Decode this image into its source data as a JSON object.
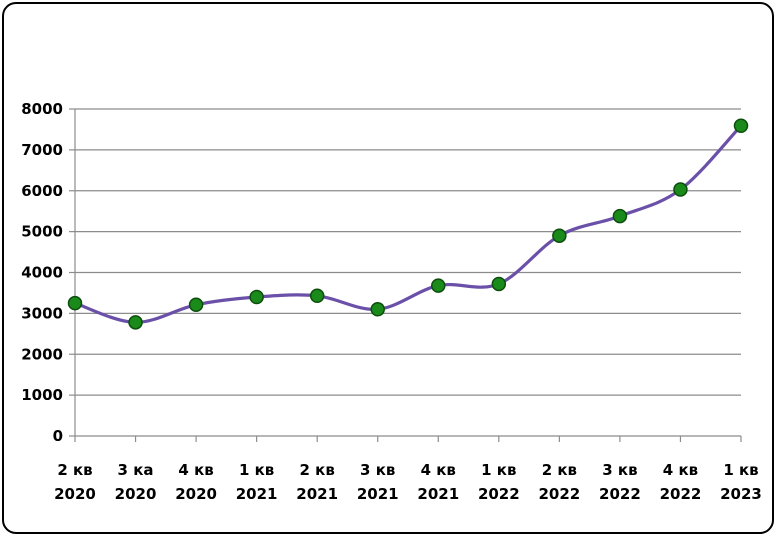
{
  "chart_data": {
    "type": "line",
    "title": "",
    "xlabel": "",
    "ylabel": "",
    "categories": [
      [
        "2 кв",
        "2020"
      ],
      [
        "3 ка",
        "2020"
      ],
      [
        "4 кв",
        "2020"
      ],
      [
        "1 кв",
        "2021"
      ],
      [
        "2 кв",
        "2021"
      ],
      [
        "3 кв",
        "2021"
      ],
      [
        "4 кв",
        "2021"
      ],
      [
        "1 кв",
        "2022"
      ],
      [
        "2 кв",
        "2022"
      ],
      [
        "3 кв",
        "2022"
      ],
      [
        "4 кв",
        "2022"
      ],
      [
        "1 кв",
        "2023"
      ]
    ],
    "series": [
      {
        "values": [
          3250,
          2780,
          3210,
          3400,
          3430,
          3100,
          3680,
          3720,
          4900,
          5380,
          6030,
          7590
        ]
      }
    ],
    "ylim": [
      0,
      8000
    ],
    "yticks": [
      0,
      1000,
      2000,
      3000,
      4000,
      5000,
      6000,
      7000,
      8000
    ],
    "grid": true,
    "legend": "none",
    "line_color": "#6a50a8",
    "marker_color": "#1a8a1a",
    "marker_edge_color": "#0d4d0d"
  }
}
